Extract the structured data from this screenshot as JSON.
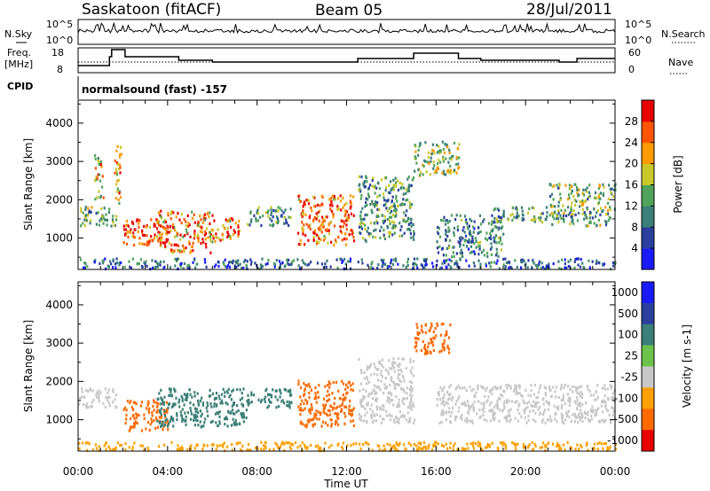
{
  "header": {
    "station": "Saskatoon (fitACF)",
    "beam": "Beam 05",
    "date": "28/Jul/2011"
  },
  "panels": {
    "nsky_label": "N.Sky",
    "nsearch_label": "N.Search",
    "freq_label_1": "Freq.",
    "freq_label_2": "[MHz]",
    "nave_label": "Nave",
    "cpid_label": "CPID",
    "cpid_value": "normalsound (fast) -157",
    "noise_ticks_left": [
      "10^5",
      "10^0"
    ],
    "noise_ticks_right": [
      "10^5",
      "10^0"
    ],
    "freq_ticks": [
      "18",
      "8"
    ],
    "nave_ticks": [
      "60",
      "0"
    ]
  },
  "chart_data": [
    {
      "type": "heatmap",
      "name": "power",
      "xlabel": "Time UT",
      "ylabel": "Slant Range [km]",
      "x_ticks": [
        "00:00",
        "04:00",
        "08:00",
        "12:00",
        "16:00",
        "20:00",
        "00:00"
      ],
      "y_ticks": [
        "1000",
        "2000",
        "3000",
        "4000"
      ],
      "ylim": [
        180,
        4600
      ],
      "colorbar_label": "Power [dB]",
      "colorbar_ticks": [
        "4",
        "8",
        "12",
        "16",
        "20",
        "24",
        "28"
      ],
      "colorbar_colors": [
        "#1a1aff",
        "#2a3f9e",
        "#3b7f78",
        "#4fa35a",
        "#c9c82a",
        "#ff9a00",
        "#ff5500",
        "#e80000"
      ],
      "echo_regions": [
        {
          "t0": 0.0,
          "t1": 1.7,
          "r0": 1300,
          "r1": 1800,
          "level": 14
        },
        {
          "t0": 0.7,
          "t1": 1.1,
          "r0": 2000,
          "r1": 3200,
          "level": 20
        },
        {
          "t0": 1.6,
          "t1": 1.9,
          "r0": 1800,
          "r1": 3400,
          "level": 22
        },
        {
          "t0": 2.0,
          "t1": 4.0,
          "r0": 800,
          "r1": 1500,
          "level": 28
        },
        {
          "t0": 3.5,
          "t1": 6.0,
          "r0": 600,
          "r1": 1700,
          "level": 24
        },
        {
          "t0": 6.0,
          "t1": 7.2,
          "r0": 900,
          "r1": 1500,
          "level": 26
        },
        {
          "t0": 7.5,
          "t1": 9.5,
          "r0": 1300,
          "r1": 1800,
          "level": 12
        },
        {
          "t0": 9.8,
          "t1": 12.3,
          "r0": 800,
          "r1": 2100,
          "level": 26
        },
        {
          "t0": 12.5,
          "t1": 15.0,
          "r0": 900,
          "r1": 2600,
          "level": 12
        },
        {
          "t0": 15.0,
          "t1": 17.0,
          "r0": 2600,
          "r1": 3500,
          "level": 16
        },
        {
          "t0": 16.0,
          "t1": 19.0,
          "r0": 500,
          "r1": 1600,
          "level": 10
        },
        {
          "t0": 18.5,
          "t1": 21.0,
          "r0": 1400,
          "r1": 1800,
          "level": 12
        },
        {
          "t0": 21.0,
          "t1": 24.0,
          "r0": 1300,
          "r1": 2400,
          "level": 14
        },
        {
          "t0": 0.0,
          "t1": 24.0,
          "r0": 180,
          "r1": 450,
          "level": 8
        }
      ]
    },
    {
      "type": "heatmap",
      "name": "velocity",
      "xlabel": "Time UT",
      "ylabel": "Slant Range [km]",
      "x_ticks": [
        "00:00",
        "04:00",
        "08:00",
        "12:00",
        "16:00",
        "20:00",
        "00:00"
      ],
      "y_ticks": [
        "1000",
        "2000",
        "3000",
        "4000"
      ],
      "ylim": [
        180,
        4600
      ],
      "colorbar_label": "Velocity [m s-1]",
      "colorbar_ticks": [
        "1000",
        "500",
        "100",
        "25",
        "-25",
        "-100",
        "-500",
        "-1000"
      ],
      "colorbar_colors": [
        "#1a1aff",
        "#2a3f9e",
        "#3b7f78",
        "#6cc24a",
        "#c8c8c8",
        "#ffa000",
        "#ff6a00",
        "#e80000"
      ],
      "echo_regions": [
        {
          "t0": 0.0,
          "t1": 1.7,
          "r0": 1300,
          "r1": 1800,
          "level": 0
        },
        {
          "t0": 2.0,
          "t1": 4.0,
          "r0": 700,
          "r1": 1500,
          "level": -300
        },
        {
          "t0": 3.5,
          "t1": 7.5,
          "r0": 800,
          "r1": 1800,
          "level": 200
        },
        {
          "t0": 7.5,
          "t1": 9.5,
          "r0": 1300,
          "r1": 1800,
          "level": 200
        },
        {
          "t0": 9.8,
          "t1": 12.3,
          "r0": 800,
          "r1": 2000,
          "level": -200
        },
        {
          "t0": 12.5,
          "t1": 15.0,
          "r0": 900,
          "r1": 2600,
          "level": 0
        },
        {
          "t0": 15.0,
          "t1": 16.7,
          "r0": 2700,
          "r1": 3500,
          "level": -300
        },
        {
          "t0": 16.0,
          "t1": 24.0,
          "r0": 900,
          "r1": 1900,
          "level": 0
        },
        {
          "t0": 0.0,
          "t1": 24.0,
          "r0": 180,
          "r1": 400,
          "level": -50
        }
      ]
    }
  ]
}
